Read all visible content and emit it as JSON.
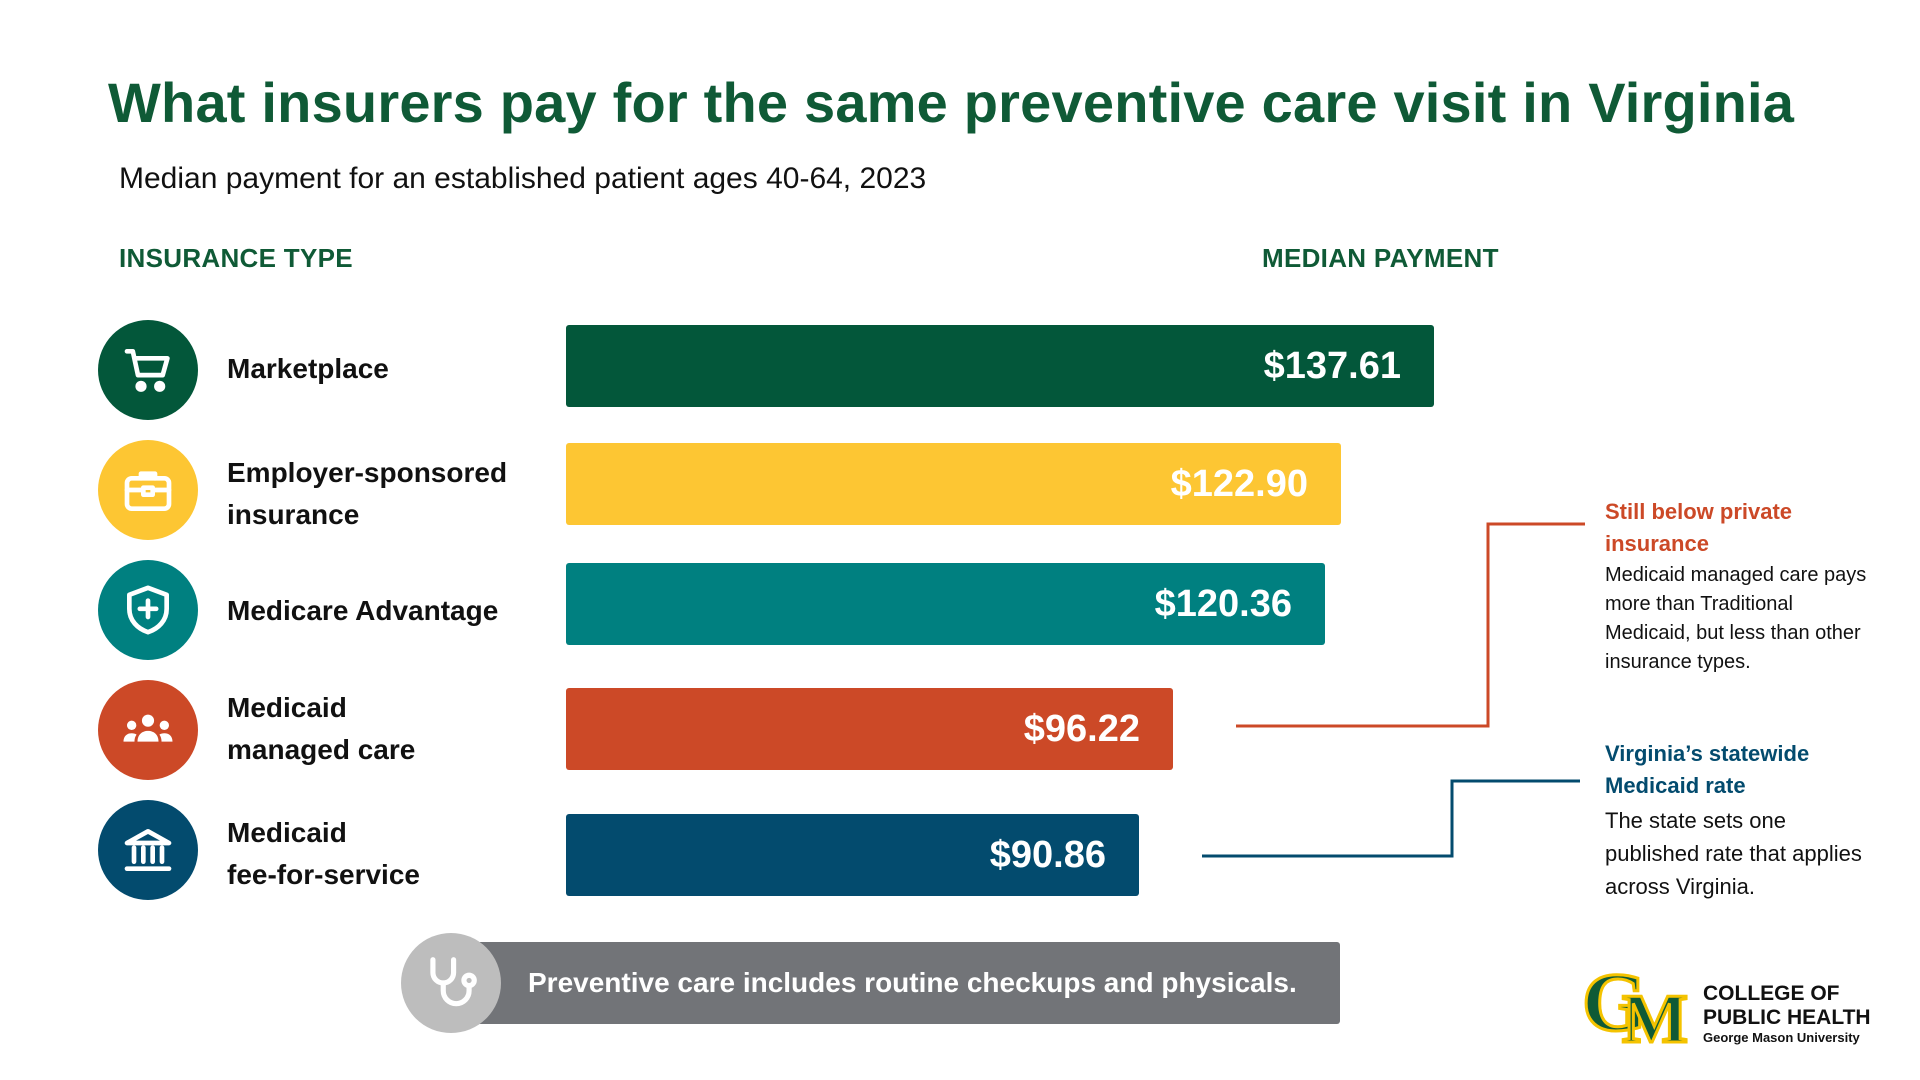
{
  "title": "What insurers pay for the same preventive care visit in Virginia",
  "subtitle": "Median payment for an established patient ages 40-64, 2023",
  "columns": {
    "left": "INSURANCE TYPE",
    "right": "MEDIAN PAYMENT"
  },
  "rows": [
    {
      "label": "Marketplace",
      "value_label": "$137.61",
      "color": "#03573a",
      "icon": "shopping-cart-icon"
    },
    {
      "label": "Employer-sponsored\ninsurance",
      "value_label": "$122.90",
      "color": "#fdc633",
      "icon": "briefcase-icon"
    },
    {
      "label": "Medicare Advantage",
      "value_label": "$120.36",
      "color": "#008080",
      "icon": "shield-plus-icon"
    },
    {
      "label": "Medicaid\nmanaged care",
      "value_label": "$96.22",
      "color": "#cc4927",
      "icon": "people-group-icon"
    },
    {
      "label": "Medicaid\nfee-for-service",
      "value_label": "$90.86",
      "color": "#034b6e",
      "icon": "government-building-icon"
    }
  ],
  "chart_data": {
    "type": "bar",
    "orientation": "horizontal",
    "title": "What insurers pay for the same preventive care visit in Virginia",
    "subtitle": "Median payment for an established patient ages 40-64, 2023",
    "categories": [
      "Marketplace",
      "Employer-sponsored insurance",
      "Medicare Advantage",
      "Medicaid managed care",
      "Medicaid fee-for-service"
    ],
    "values": [
      137.61,
      122.9,
      120.36,
      96.22,
      90.86
    ],
    "unit": "USD",
    "grid": false,
    "axis_visible": false
  },
  "annotations": [
    {
      "title": "Still below private insurance",
      "body": "Medicaid managed care pays more than Traditional Medicaid, but less than other insurance types.",
      "color": "#cc4927"
    },
    {
      "title": "Virginia’s statewide Medicaid rate",
      "body": "The state sets one published rate that applies across Virginia.",
      "color": "#034b6e"
    }
  ],
  "note": {
    "text": "Preventive care includes routine checkups and physicals.",
    "icon": "stethoscope-icon"
  },
  "logo": {
    "line1": "COLLEGE OF",
    "line2": "PUBLIC HEALTH",
    "line3": "George Mason University",
    "mark": "GM"
  }
}
